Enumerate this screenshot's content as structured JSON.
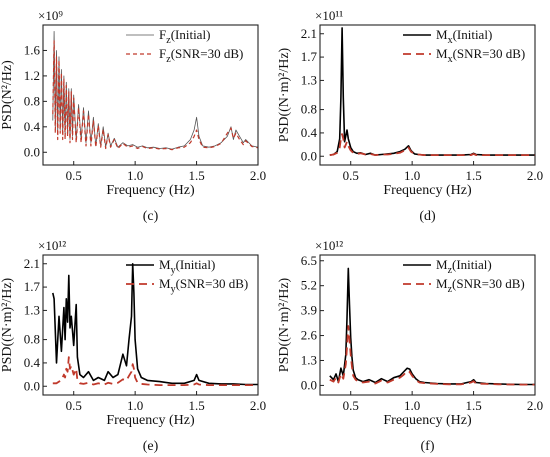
{
  "figure": {
    "colors": {
      "initial_c": "#555555",
      "initial": "#000000",
      "snr": "#c0392b",
      "axis": "#222222"
    }
  },
  "chart_data": [
    {
      "panel_label": "(c)",
      "type": "line",
      "xlabel": "Frequency (Hz)",
      "ylabel": "PSD(N²/Hz)",
      "multiplier": "×10⁹",
      "xlim": [
        0.25,
        2.0
      ],
      "ylim": [
        -0.2,
        2.0
      ],
      "xticks": [
        "0.5",
        "1.0",
        "1.5",
        "2.0"
      ],
      "xtick_values": [
        0.5,
        1.0,
        1.5,
        2.0
      ],
      "yticks": [
        "0.0",
        "0.4",
        "0.8",
        "1.2",
        "1.6"
      ],
      "ytick_values": [
        0.0,
        0.4,
        0.8,
        1.2,
        1.6
      ],
      "legend_position": "top-right",
      "series": [
        {
          "name": "Fz(Initial)",
          "name_main": "F",
          "name_sub": "z",
          "name_rest": "(Initial)",
          "color": "#555555",
          "dash": "solid",
          "width": 0.8,
          "x": [
            0.33,
            0.34,
            0.35,
            0.36,
            0.37,
            0.38,
            0.39,
            0.4,
            0.41,
            0.42,
            0.43,
            0.44,
            0.45,
            0.46,
            0.47,
            0.48,
            0.49,
            0.5,
            0.52,
            0.54,
            0.56,
            0.58,
            0.6,
            0.62,
            0.64,
            0.66,
            0.68,
            0.7,
            0.72,
            0.74,
            0.76,
            0.78,
            0.8,
            0.83,
            0.86,
            0.9,
            0.94,
            0.98,
            1.02,
            1.06,
            1.1,
            1.15,
            1.2,
            1.25,
            1.3,
            1.35,
            1.4,
            1.45,
            1.48,
            1.5,
            1.52,
            1.55,
            1.6,
            1.65,
            1.7,
            1.75,
            1.78,
            1.8,
            1.82,
            1.85,
            1.88,
            1.9,
            1.95,
            2.0
          ],
          "y": [
            0.5,
            1.9,
            0.4,
            1.6,
            0.3,
            1.5,
            0.35,
            1.3,
            0.3,
            1.2,
            0.25,
            1.1,
            0.3,
            1.0,
            0.2,
            1.0,
            0.25,
            0.9,
            0.2,
            0.75,
            0.2,
            0.7,
            0.15,
            0.65,
            0.15,
            0.55,
            0.1,
            0.45,
            0.1,
            0.4,
            0.08,
            0.3,
            0.1,
            0.22,
            0.08,
            0.15,
            0.1,
            0.12,
            0.08,
            0.1,
            0.07,
            0.08,
            0.06,
            0.07,
            0.05,
            0.08,
            0.1,
            0.2,
            0.35,
            0.55,
            0.25,
            0.1,
            0.08,
            0.1,
            0.15,
            0.25,
            0.4,
            0.2,
            0.35,
            0.25,
            0.15,
            0.2,
            0.1,
            0.08
          ]
        },
        {
          "name": "Fz(SNR=30 dB)",
          "name_main": "F",
          "name_sub": "z",
          "name_rest": "(SNR=30 dB)",
          "color": "#c0392b",
          "dash": "4,3",
          "width": 1.2,
          "x": [
            0.33,
            0.34,
            0.35,
            0.36,
            0.37,
            0.38,
            0.39,
            0.4,
            0.41,
            0.42,
            0.43,
            0.44,
            0.45,
            0.46,
            0.47,
            0.48,
            0.49,
            0.5,
            0.52,
            0.54,
            0.56,
            0.58,
            0.6,
            0.62,
            0.64,
            0.66,
            0.68,
            0.7,
            0.72,
            0.74,
            0.76,
            0.78,
            0.8,
            0.83,
            0.86,
            0.9,
            0.94,
            0.98,
            1.02,
            1.06,
            1.1,
            1.15,
            1.2,
            1.25,
            1.3,
            1.35,
            1.4,
            1.45,
            1.48,
            1.5,
            1.52,
            1.55,
            1.6,
            1.65,
            1.7,
            1.75,
            1.78,
            1.8,
            1.82,
            1.85,
            1.88,
            1.9,
            1.95,
            2.0
          ],
          "y": [
            0.6,
            1.75,
            0.3,
            1.5,
            0.2,
            1.45,
            0.3,
            1.25,
            0.2,
            1.15,
            0.2,
            1.05,
            0.25,
            0.95,
            0.15,
            0.95,
            0.2,
            0.85,
            0.15,
            0.7,
            0.15,
            0.65,
            0.1,
            0.6,
            0.1,
            0.5,
            0.08,
            0.42,
            0.08,
            0.36,
            0.06,
            0.28,
            0.08,
            0.2,
            0.06,
            0.14,
            0.08,
            0.1,
            0.06,
            0.09,
            0.06,
            0.07,
            0.05,
            0.06,
            0.04,
            0.07,
            0.08,
            0.15,
            0.25,
            0.35,
            0.2,
            0.08,
            0.07,
            0.09,
            0.14,
            0.3,
            0.38,
            0.22,
            0.3,
            0.2,
            0.12,
            0.18,
            0.09,
            0.07
          ]
        }
      ]
    },
    {
      "panel_label": "(d)",
      "type": "line",
      "xlabel": "Frequency (Hz)",
      "ylabel": "PSD((N·m)²/Hz)",
      "multiplier": "×10¹¹",
      "xlim": [
        0.25,
        2.0
      ],
      "ylim": [
        -0.15,
        2.25
      ],
      "xticks": [
        "0.5",
        "1.0",
        "1.5",
        "2.0"
      ],
      "xtick_values": [
        0.5,
        1.0,
        1.5,
        2.0
      ],
      "yticks": [
        "0.0",
        "0.4",
        "0.8",
        "1.3",
        "1.7",
        "2.1"
      ],
      "ytick_values": [
        0.0,
        0.4,
        0.8,
        1.3,
        1.7,
        2.1
      ],
      "legend_position": "top-right",
      "series": [
        {
          "name": "Mx(Initial)",
          "name_main": "M",
          "name_sub": "x",
          "name_rest": "(Initial)",
          "color": "#000000",
          "dash": "solid",
          "width": 1.6,
          "x": [
            0.33,
            0.36,
            0.39,
            0.41,
            0.42,
            0.43,
            0.44,
            0.45,
            0.46,
            0.47,
            0.48,
            0.5,
            0.52,
            0.55,
            0.58,
            0.62,
            0.66,
            0.7,
            0.75,
            0.8,
            0.85,
            0.9,
            0.94,
            0.97,
            0.99,
            1.02,
            1.05,
            1.1,
            1.2,
            1.3,
            1.4,
            1.48,
            1.5,
            1.52,
            1.6,
            1.7,
            1.8,
            1.9,
            2.0
          ],
          "y": [
            0.02,
            0.03,
            0.08,
            0.3,
            1.0,
            2.2,
            1.0,
            0.25,
            0.35,
            0.45,
            0.3,
            0.15,
            0.08,
            0.05,
            0.06,
            0.03,
            0.05,
            0.02,
            0.03,
            0.04,
            0.05,
            0.08,
            0.12,
            0.18,
            0.1,
            0.04,
            0.03,
            0.02,
            0.02,
            0.02,
            0.02,
            0.03,
            0.05,
            0.03,
            0.02,
            0.02,
            0.02,
            0.02,
            0.02
          ]
        },
        {
          "name": "Mx(SNR=30 dB)",
          "name_main": "M",
          "name_sub": "x",
          "name_rest": "(SNR=30 dB)",
          "color": "#c0392b",
          "dash": "8,5",
          "width": 1.8,
          "x": [
            0.33,
            0.36,
            0.39,
            0.41,
            0.42,
            0.43,
            0.44,
            0.45,
            0.46,
            0.47,
            0.48,
            0.5,
            0.52,
            0.55,
            0.58,
            0.62,
            0.66,
            0.7,
            0.75,
            0.8,
            0.85,
            0.9,
            0.94,
            0.97,
            0.99,
            1.02,
            1.05,
            1.1,
            1.2,
            1.3,
            1.4,
            1.48,
            1.5,
            1.52,
            1.6,
            1.7,
            1.8,
            1.9,
            2.0
          ],
          "y": [
            0.02,
            0.03,
            0.06,
            0.15,
            0.3,
            0.38,
            0.3,
            0.15,
            0.2,
            0.25,
            0.18,
            0.1,
            0.06,
            0.04,
            0.05,
            0.03,
            0.04,
            0.02,
            0.03,
            0.03,
            0.04,
            0.06,
            0.1,
            0.15,
            0.08,
            0.04,
            0.03,
            0.02,
            0.02,
            0.02,
            0.02,
            0.02,
            0.04,
            0.02,
            0.02,
            0.02,
            0.02,
            0.02,
            0.02
          ]
        }
      ]
    },
    {
      "panel_label": "(e)",
      "type": "line",
      "xlabel": "Frequency (Hz)",
      "ylabel": "PSD((N·m)²/Hz)",
      "multiplier": "×10¹²",
      "xlim": [
        0.25,
        2.0
      ],
      "ylim": [
        -0.15,
        2.25
      ],
      "xticks": [
        "0.5",
        "1.0",
        "1.5",
        "2.0"
      ],
      "xtick_values": [
        0.5,
        1.0,
        1.5,
        2.0
      ],
      "yticks": [
        "0.0",
        "0.4",
        "0.8",
        "1.3",
        "1.7",
        "2.1"
      ],
      "ytick_values": [
        0.0,
        0.4,
        0.8,
        1.3,
        1.7,
        2.1
      ],
      "legend_position": "top-right",
      "series": [
        {
          "name": "My(Initial)",
          "name_main": "M",
          "name_sub": "y",
          "name_rest": "(Initial)",
          "color": "#000000",
          "dash": "solid",
          "width": 1.6,
          "x": [
            0.33,
            0.34,
            0.36,
            0.38,
            0.4,
            0.42,
            0.43,
            0.44,
            0.45,
            0.46,
            0.47,
            0.48,
            0.5,
            0.52,
            0.53,
            0.55,
            0.58,
            0.62,
            0.66,
            0.7,
            0.75,
            0.78,
            0.82,
            0.86,
            0.9,
            0.93,
            0.95,
            0.97,
            0.98,
            0.99,
            1.0,
            1.02,
            1.05,
            1.1,
            1.2,
            1.3,
            1.4,
            1.48,
            1.5,
            1.52,
            1.6,
            1.7,
            1.8,
            1.9,
            2.0
          ],
          "y": [
            1.6,
            1.5,
            0.4,
            1.2,
            0.6,
            1.35,
            0.8,
            1.5,
            1.1,
            1.9,
            1.0,
            1.2,
            0.7,
            1.4,
            0.5,
            0.2,
            0.15,
            0.25,
            0.1,
            0.15,
            0.1,
            0.25,
            0.15,
            0.2,
            0.55,
            0.35,
            0.8,
            1.2,
            2.1,
            1.6,
            0.8,
            0.3,
            0.15,
            0.1,
            0.08,
            0.05,
            0.05,
            0.1,
            0.2,
            0.1,
            0.05,
            0.04,
            0.04,
            0.03,
            0.03
          ]
        },
        {
          "name": "My(SNR=30 dB)",
          "name_main": "M",
          "name_sub": "y",
          "name_rest": "(SNR=30 dB)",
          "color": "#c0392b",
          "dash": "8,5",
          "width": 1.8,
          "x": [
            0.33,
            0.34,
            0.36,
            0.38,
            0.4,
            0.42,
            0.43,
            0.44,
            0.45,
            0.46,
            0.47,
            0.48,
            0.5,
            0.52,
            0.53,
            0.55,
            0.58,
            0.62,
            0.66,
            0.7,
            0.75,
            0.78,
            0.82,
            0.86,
            0.9,
            0.93,
            0.95,
            0.97,
            0.98,
            0.99,
            1.0,
            1.02,
            1.05,
            1.1,
            1.2,
            1.3,
            1.4,
            1.48,
            1.5,
            1.52,
            1.6,
            1.7,
            1.8,
            1.9,
            2.0
          ],
          "y": [
            0.05,
            0.05,
            0.05,
            0.08,
            0.1,
            0.2,
            0.15,
            0.3,
            0.25,
            0.5,
            0.3,
            0.35,
            0.2,
            0.3,
            0.1,
            0.05,
            0.04,
            0.06,
            0.03,
            0.05,
            0.03,
            0.06,
            0.04,
            0.06,
            0.12,
            0.1,
            0.18,
            0.25,
            0.38,
            0.3,
            0.15,
            0.06,
            0.04,
            0.03,
            0.02,
            0.02,
            0.02,
            0.03,
            0.05,
            0.03,
            0.02,
            0.02,
            0.02,
            0.02,
            0.02
          ]
        }
      ]
    },
    {
      "panel_label": "(f)",
      "type": "line",
      "xlabel": "Frequency (Hz)",
      "ylabel": "PSD((N·m)²/Hz)",
      "multiplier": "×10¹²",
      "xlim": [
        0.25,
        2.0
      ],
      "ylim": [
        -0.5,
        6.8
      ],
      "xticks": [
        "0.5",
        "1.0",
        "1.5",
        "2.0"
      ],
      "xtick_values": [
        0.5,
        1.0,
        1.5,
        2.0
      ],
      "yticks": [
        "0.0",
        "1.3",
        "2.6",
        "3.9",
        "5.2",
        "6.5"
      ],
      "ytick_values": [
        0.0,
        1.3,
        2.6,
        3.9,
        5.2,
        6.5
      ],
      "legend_position": "top-right",
      "series": [
        {
          "name": "Mz(Initial)",
          "name_main": "M",
          "name_sub": "z",
          "name_rest": "(Initial)",
          "color": "#000000",
          "dash": "solid",
          "width": 1.6,
          "x": [
            0.33,
            0.36,
            0.38,
            0.4,
            0.42,
            0.44,
            0.46,
            0.47,
            0.48,
            0.49,
            0.5,
            0.51,
            0.52,
            0.54,
            0.56,
            0.6,
            0.65,
            0.7,
            0.75,
            0.8,
            0.85,
            0.9,
            0.93,
            0.96,
            0.98,
            1.0,
            1.03,
            1.06,
            1.1,
            1.2,
            1.3,
            1.4,
            1.48,
            1.5,
            1.52,
            1.6,
            1.7,
            1.8,
            1.9,
            2.0
          ],
          "y": [
            0.5,
            0.3,
            0.6,
            0.2,
            0.9,
            0.5,
            1.6,
            3.5,
            6.1,
            4.2,
            2.5,
            1.5,
            0.8,
            0.4,
            0.3,
            0.2,
            0.3,
            0.15,
            0.35,
            0.2,
            0.4,
            0.5,
            0.7,
            0.9,
            0.85,
            0.6,
            0.35,
            0.2,
            0.15,
            0.1,
            0.08,
            0.08,
            0.2,
            0.3,
            0.15,
            0.1,
            0.08,
            0.06,
            0.05,
            0.05
          ]
        },
        {
          "name": "Mz(SNR=30 dB)",
          "name_main": "M",
          "name_sub": "z",
          "name_rest": "(SNR=30 dB)",
          "color": "#c0392b",
          "dash": "8,5",
          "width": 1.8,
          "x": [
            0.33,
            0.36,
            0.38,
            0.4,
            0.42,
            0.44,
            0.46,
            0.47,
            0.48,
            0.49,
            0.5,
            0.51,
            0.52,
            0.54,
            0.56,
            0.6,
            0.65,
            0.7,
            0.75,
            0.8,
            0.85,
            0.9,
            0.93,
            0.96,
            0.98,
            1.0,
            1.03,
            1.06,
            1.1,
            1.2,
            1.3,
            1.4,
            1.48,
            1.5,
            1.52,
            1.6,
            1.7,
            1.8,
            1.9,
            2.0
          ],
          "y": [
            0.3,
            0.2,
            0.4,
            0.15,
            0.6,
            0.35,
            1.1,
            2.0,
            3.1,
            2.4,
            1.6,
            1.0,
            0.5,
            0.3,
            0.2,
            0.15,
            0.2,
            0.1,
            0.25,
            0.15,
            0.3,
            0.4,
            0.55,
            0.75,
            0.7,
            0.5,
            0.28,
            0.15,
            0.12,
            0.08,
            0.06,
            0.06,
            0.15,
            0.22,
            0.1,
            0.08,
            0.06,
            0.05,
            0.04,
            0.04
          ]
        }
      ]
    }
  ]
}
